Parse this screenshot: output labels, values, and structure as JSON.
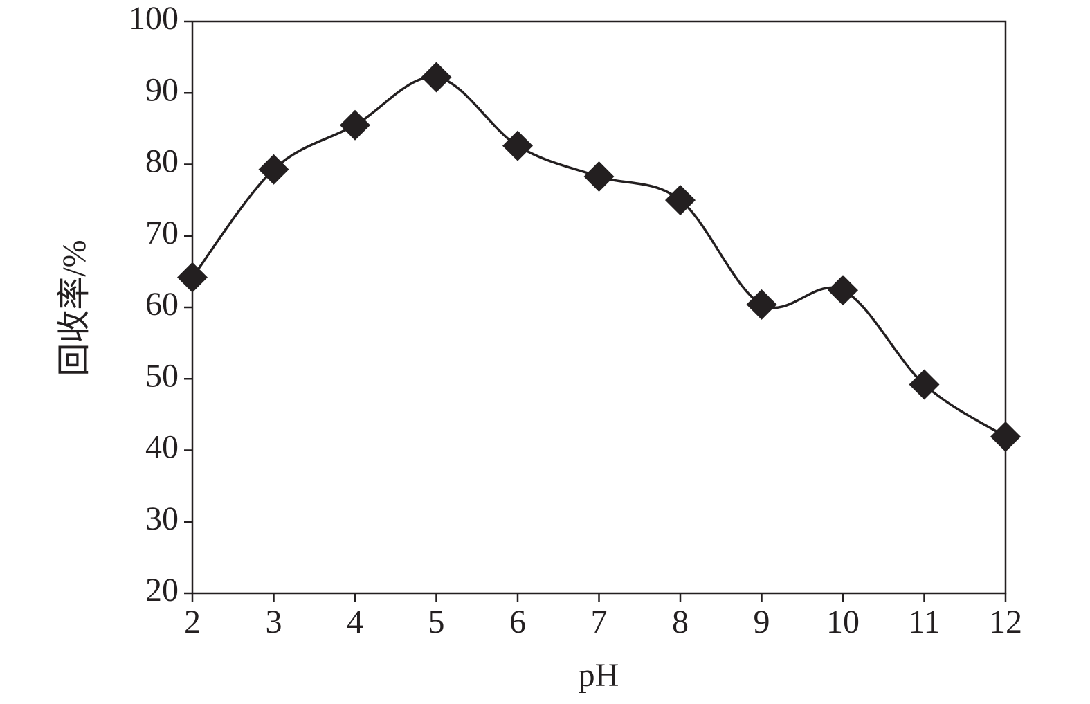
{
  "chart_data": {
    "type": "line",
    "xlabel": "pH",
    "ylabel": "回收率/%",
    "x": [
      2,
      3,
      4,
      5,
      6,
      7,
      8,
      9,
      10,
      11,
      12
    ],
    "values": [
      64.2,
      79.3,
      85.5,
      92.2,
      82.6,
      78.3,
      75.0,
      60.4,
      62.4,
      49.2,
      41.9
    ],
    "color": "#231f20",
    "marker": "diamond",
    "smooth": true,
    "xlim": [
      2,
      12
    ],
    "xticks": [
      2,
      3,
      4,
      5,
      6,
      7,
      8,
      9,
      10,
      11,
      12
    ],
    "ylim": [
      20,
      100
    ],
    "yticks": [
      20,
      30,
      40,
      50,
      60,
      70,
      80,
      90,
      100
    ]
  }
}
